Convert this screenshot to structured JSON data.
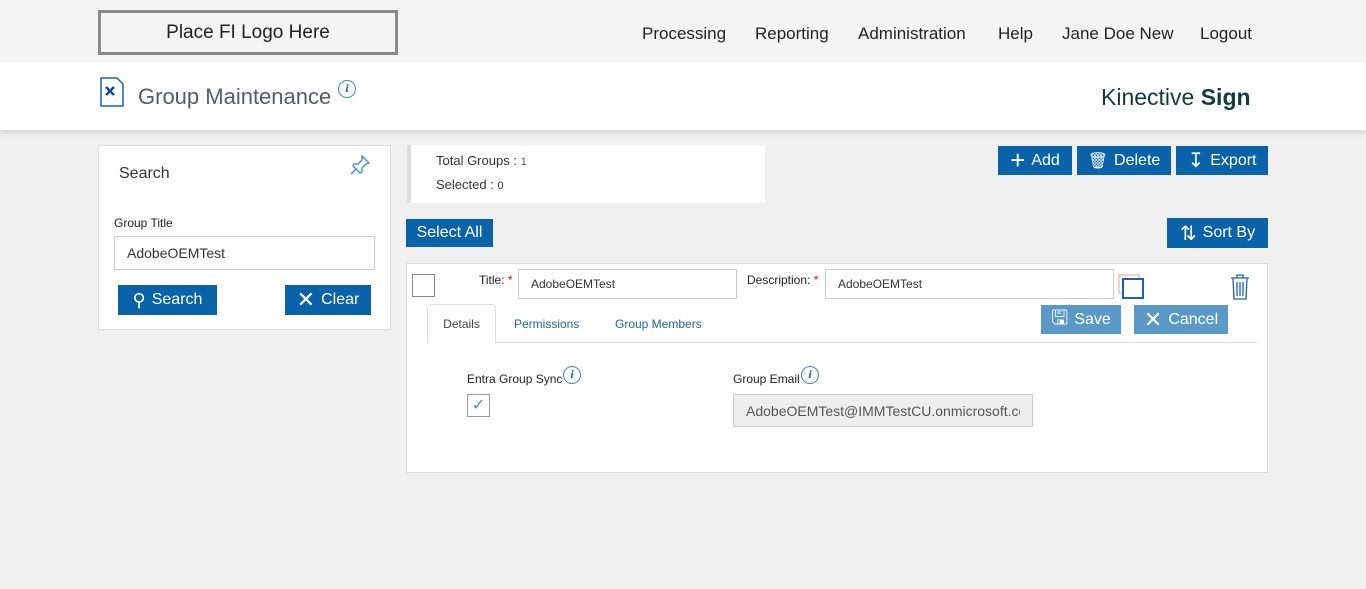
{
  "topbar": {
    "logo": "Place FI Logo Here",
    "nav": [
      "Processing",
      "Reporting",
      "Administration",
      "Help",
      "Jane Doe New",
      "Logout"
    ]
  },
  "header": {
    "title": "Group Maintenance",
    "brand_light": "Kinective",
    "brand_bold": "Sign"
  },
  "search": {
    "title": "Search",
    "group_title_label": "Group Title",
    "group_title_value": "AdobeOEMTest",
    "search_button": "Search",
    "clear_button": "Clear"
  },
  "summary": {
    "total_label": "Total Groups :",
    "total_value": "1",
    "selected_label": "Selected :",
    "selected_value": "0"
  },
  "toolbar": {
    "add": "Add",
    "delete": "Delete",
    "export": "Export",
    "select_all": "Select All",
    "sort_by": "Sort By"
  },
  "group": {
    "title_label": "Title:",
    "title_value": "AdobeOEMTest",
    "description_label": "Description:",
    "description_value": "AdobeOEMTest",
    "save": "Save",
    "cancel": "Cancel",
    "tabs": [
      "Details",
      "Permissions",
      "Group Members"
    ],
    "entra_label": "Entra Group Sync",
    "entra_checked": true,
    "email_label": "Group Email",
    "email_value": "AdobeOEMTest@IMMTestCU.onmicrosoft.com"
  },
  "colors": {
    "primary": "#0a62a8",
    "disabled": "#5a98c8",
    "link": "#1a64b0"
  }
}
